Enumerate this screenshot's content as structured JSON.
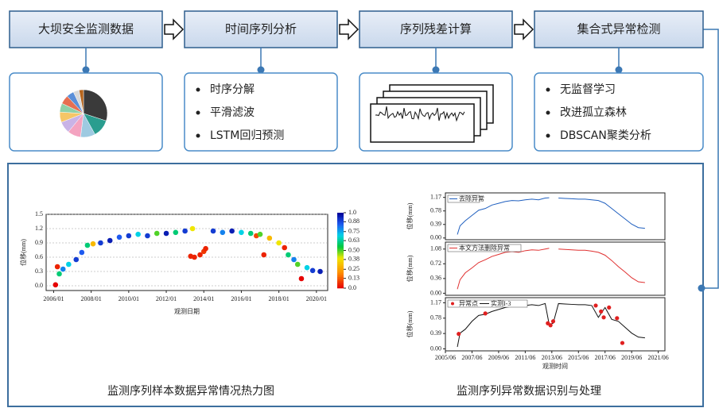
{
  "steps": [
    {
      "title": "大坝安全监测数据"
    },
    {
      "title": "时间序列分析",
      "items": [
        "时序分解",
        "平滑滤波",
        "LSTM回归预测"
      ]
    },
    {
      "title": "序列残差计算"
    },
    {
      "title": "集合式异常检测",
      "items": [
        "无监督学习",
        "改进孤立森林",
        "DBSCAN聚类分析"
      ]
    }
  ],
  "pie": {
    "type": "pie",
    "values": [
      30,
      12,
      10,
      9,
      8,
      7,
      6,
      6,
      5,
      4,
      3
    ],
    "colors": [
      "#3a3a3a",
      "#2a9d8f",
      "#9ecae1",
      "#f4a3c0",
      "#c9b3e6",
      "#f6c667",
      "#8fd0a8",
      "#e76f51",
      "#5b8fd8",
      "#d9d9d9",
      "#b5651d"
    ]
  },
  "heatmap": {
    "type": "scatter",
    "xlabel": "观测日期",
    "ylabel": "位移(mm)",
    "xlim": [
      2005.6,
      2020.6
    ],
    "ylim": [
      -0.1,
      1.5
    ],
    "xticks": [
      {
        "value": 2006,
        "label": "2006/01"
      },
      {
        "value": 2008,
        "label": "2008/01"
      },
      {
        "value": 2010,
        "label": "2010/01"
      },
      {
        "value": 2012,
        "label": "2012/01"
      },
      {
        "value": 2014,
        "label": "2014/01"
      },
      {
        "value": 2016,
        "label": "2016/01"
      },
      {
        "value": 2018,
        "label": "2018/01"
      },
      {
        "value": 2020,
        "label": "2020/01"
      }
    ],
    "yticks": [
      {
        "value": 0,
        "label": "0.0"
      },
      0.3,
      0.6,
      0.9,
      1.2,
      1.5
    ],
    "clim": [
      0,
      1
    ],
    "cticks": [
      {
        "value": 0,
        "label": "0.0"
      },
      0.13,
      0.25,
      0.38,
      {
        "value": 0.5,
        "label": "0.50"
      },
      0.63,
      0.75,
      0.88,
      {
        "value": 1,
        "label": "1.0"
      }
    ],
    "x": [
      2006.1,
      2006.2,
      2006.3,
      2006.5,
      2006.8,
      2007.2,
      2007.5,
      2007.8,
      2008.1,
      2008.5,
      2009.0,
      2009.5,
      2010.0,
      2010.5,
      2011.0,
      2011.5,
      2012.0,
      2012.5,
      2013.0,
      2013.4,
      2013.3,
      2013.5,
      2013.8,
      2014.0,
      2014.1,
      2014.5,
      2015.0,
      2015.5,
      2016.0,
      2016.5,
      2016.8,
      2017.0,
      2017.2,
      2017.5,
      2018.0,
      2018.3,
      2018.5,
      2018.8,
      2019.0,
      2019.2,
      2019.5,
      2019.8,
      2020.2
    ],
    "y": [
      0.02,
      0.4,
      0.25,
      0.35,
      0.45,
      0.55,
      0.7,
      0.85,
      0.88,
      0.9,
      0.95,
      1.02,
      1.05,
      1.08,
      1.05,
      1.1,
      1.1,
      1.12,
      1.15,
      1.2,
      0.62,
      0.6,
      0.65,
      0.72,
      0.78,
      1.15,
      1.12,
      1.15,
      1.12,
      1.1,
      1.05,
      1.08,
      0.65,
      1.0,
      0.9,
      0.8,
      0.65,
      0.55,
      0.45,
      0.15,
      0.38,
      0.32,
      0.3
    ],
    "c": [
      0.0,
      0.05,
      0.6,
      0.8,
      0.7,
      0.9,
      0.85,
      0.6,
      0.3,
      0.9,
      0.95,
      0.85,
      0.9,
      0.7,
      0.9,
      0.5,
      0.95,
      0.6,
      0.9,
      0.4,
      0.05,
      0.05,
      0.05,
      0.08,
      0.05,
      0.9,
      0.8,
      0.95,
      0.7,
      0.6,
      0.1,
      0.5,
      0.05,
      0.3,
      0.4,
      0.05,
      0.6,
      0.8,
      0.5,
      0.0,
      0.7,
      0.9,
      0.95
    ]
  },
  "series_chart": {
    "type": "line",
    "xlabel": "观测时间",
    "ylabel": "位移(mm)",
    "xlim": [
      2005.5,
      2022
    ],
    "xticks": [
      {
        "value": 2005.5,
        "label": "2005/06"
      },
      {
        "value": 2007.5,
        "label": "2007/06"
      },
      {
        "value": 2009.5,
        "label": "2009/06"
      },
      {
        "value": 2011.5,
        "label": "2011/06"
      },
      {
        "value": 2013.5,
        "label": "2013/06"
      },
      {
        "value": 2015.5,
        "label": "2015/06"
      },
      {
        "value": 2017.5,
        "label": "2017/06"
      },
      {
        "value": 2019.5,
        "label": "2019/06"
      },
      {
        "value": 2021.5,
        "label": "2021/06"
      }
    ],
    "x": [
      2006.4,
      2006.6,
      2007,
      2007.5,
      2008,
      2008.5,
      2009,
      2009.5,
      2010,
      2010.5,
      2011,
      2011.5,
      2012,
      2012.5,
      2013,
      2013.3,
      2013.6,
      2014,
      2014.5,
      2015,
      2015.5,
      2016,
      2016.5,
      2017,
      2017.5,
      2018,
      2018.5,
      2019,
      2019.5,
      2020,
      2020.5
    ],
    "panels": [
      {
        "name": "去除异常",
        "color": "#1f5fbf",
        "ylim": [
          -0.05,
          1.3
        ],
        "yticks": [
          {
            "value": 0,
            "label": "0.00"
          },
          0.39,
          0.78,
          1.17
        ],
        "values": [
          0.1,
          0.35,
          0.5,
          0.65,
          0.8,
          0.85,
          0.95,
          1.0,
          1.05,
          1.08,
          1.07,
          1.1,
          1.12,
          1.1,
          1.15,
          1.16,
          null,
          1.15,
          1.14,
          1.13,
          1.12,
          1.12,
          1.1,
          1.08,
          1.0,
          0.85,
          0.7,
          0.55,
          0.4,
          0.3,
          0.28
        ]
      },
      {
        "name": "本文方法删除异常",
        "color": "#e03030",
        "ylim": [
          -0.05,
          1.25
        ],
        "yticks": [
          {
            "value": 0,
            "label": "0.00"
          },
          0.36,
          0.72,
          1.08
        ],
        "values": [
          0.1,
          0.33,
          0.5,
          0.62,
          0.75,
          0.82,
          0.9,
          0.95,
          1.0,
          1.02,
          1.0,
          1.04,
          1.06,
          1.05,
          1.08,
          1.1,
          null,
          1.08,
          1.07,
          1.06,
          1.05,
          1.05,
          1.03,
          1.0,
          0.93,
          0.8,
          0.65,
          0.52,
          0.38,
          0.28,
          0.26
        ]
      },
      {
        "name": "实测I-3",
        "color": "#111111",
        "ylim": [
          -0.05,
          1.3
        ],
        "yticks": [
          {
            "value": 0,
            "label": "0.00"
          },
          0.39,
          0.78,
          1.17
        ],
        "values": [
          0.05,
          0.4,
          0.5,
          0.7,
          0.85,
          0.88,
          0.95,
          1.0,
          1.05,
          1.08,
          1.07,
          1.1,
          1.12,
          1.1,
          1.15,
          0.62,
          0.65,
          1.15,
          1.14,
          1.13,
          1.12,
          1.12,
          1.1,
          0.8,
          1.05,
          0.75,
          0.7,
          0.55,
          0.4,
          0.3,
          0.28
        ]
      }
    ],
    "anomalies": {
      "name": "异常点",
      "color": "#e02020",
      "x": [
        2006.5,
        2008.5,
        2013.2,
        2013.4,
        2013.6,
        2016.8,
        2017.2,
        2017.4,
        2017.8,
        2018.4,
        2018.8
      ],
      "y": [
        0.38,
        0.9,
        0.65,
        0.6,
        0.7,
        1.1,
        0.95,
        0.8,
        1.05,
        0.78,
        0.15
      ]
    }
  },
  "captions": [
    "监测序列样本数据异常情况热力图",
    "监测序列异常数据识别与处理"
  ]
}
